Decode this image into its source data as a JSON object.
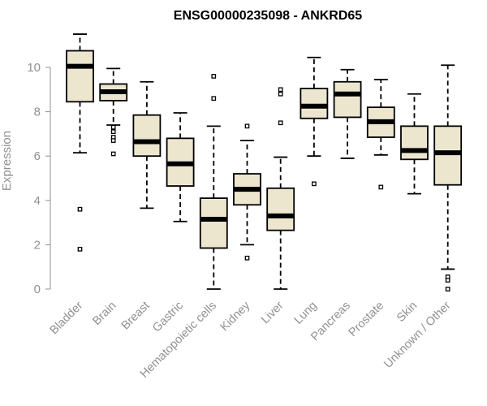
{
  "chart_data": {
    "type": "boxplot",
    "title": "ENSG00000235098 - ANKRD65",
    "xlabel": "",
    "ylabel": "Expression",
    "ylim": [
      0,
      11.6
    ],
    "yticks": [
      0,
      2,
      4,
      6,
      8,
      10
    ],
    "grid": false,
    "legend": "none",
    "colors": {
      "box_fill": "#ede6cf",
      "stroke": "#000000",
      "axis": "#909090"
    },
    "categories": [
      "Bladder",
      "Brain",
      "Breast",
      "Gastric",
      "Hematopoietic cells",
      "Kidney",
      "Liver",
      "Lung",
      "Pancreas",
      "Prostate",
      "Skin",
      "Unknown / Other"
    ],
    "boxes": [
      {
        "category": "Bladder",
        "whisker_low": 6.15,
        "q1": 8.45,
        "median": 10.05,
        "q3": 10.75,
        "whisker_high": 11.5,
        "outliers": [
          3.6,
          1.8
        ]
      },
      {
        "category": "Brain",
        "whisker_low": 7.4,
        "q1": 8.5,
        "median": 8.9,
        "q3": 9.25,
        "whisker_high": 9.95,
        "outliers": [
          7.3,
          7.1,
          6.85,
          6.7,
          6.1
        ]
      },
      {
        "category": "Breast",
        "whisker_low": 3.65,
        "q1": 6.0,
        "median": 6.65,
        "q3": 7.85,
        "whisker_high": 9.35,
        "outliers": []
      },
      {
        "category": "Gastric",
        "whisker_low": 3.05,
        "q1": 4.65,
        "median": 5.65,
        "q3": 6.8,
        "whisker_high": 7.95,
        "outliers": []
      },
      {
        "category": "Hematopoietic cells",
        "whisker_low": 0.0,
        "q1": 1.85,
        "median": 3.15,
        "q3": 4.1,
        "whisker_high": 7.35,
        "outliers": [
          9.6,
          8.6
        ]
      },
      {
        "category": "Kidney",
        "whisker_low": 2.0,
        "q1": 3.8,
        "median": 4.5,
        "q3": 5.2,
        "whisker_high": 6.7,
        "outliers": [
          7.35,
          1.4
        ]
      },
      {
        "category": "Liver",
        "whisker_low": 0.0,
        "q1": 2.65,
        "median": 3.3,
        "q3": 4.55,
        "whisker_high": 5.95,
        "outliers": [
          9.0,
          8.8,
          7.5
        ]
      },
      {
        "category": "Lung",
        "whisker_low": 6.0,
        "q1": 7.7,
        "median": 8.25,
        "q3": 9.05,
        "whisker_high": 10.45,
        "outliers": [
          4.75
        ]
      },
      {
        "category": "Pancreas",
        "whisker_low": 5.9,
        "q1": 7.75,
        "median": 8.8,
        "q3": 9.35,
        "whisker_high": 9.9,
        "outliers": []
      },
      {
        "category": "Prostate",
        "whisker_low": 6.05,
        "q1": 6.85,
        "median": 7.55,
        "q3": 8.2,
        "whisker_high": 9.45,
        "outliers": [
          4.6
        ]
      },
      {
        "category": "Skin",
        "whisker_low": 4.3,
        "q1": 5.85,
        "median": 6.25,
        "q3": 7.35,
        "whisker_high": 8.8,
        "outliers": []
      },
      {
        "category": "Unknown / Other",
        "whisker_low": 0.9,
        "q1": 4.7,
        "median": 6.15,
        "q3": 7.35,
        "whisker_high": 10.1,
        "outliers": [
          0.55,
          0.4,
          0.0
        ]
      }
    ]
  }
}
